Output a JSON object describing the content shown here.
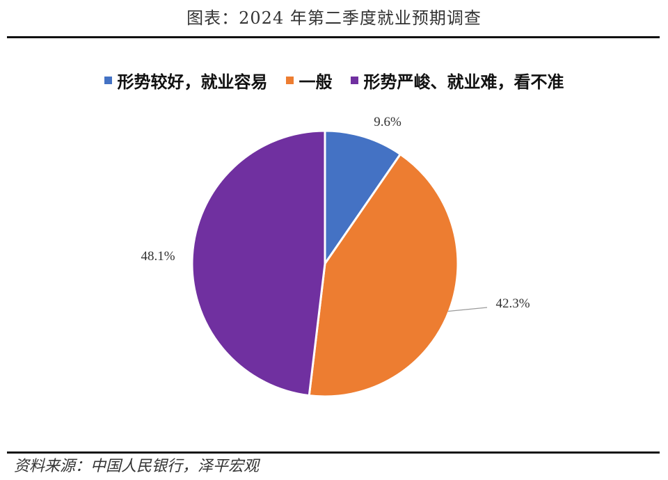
{
  "title": "图表：2024 年第二季度就业预期调查",
  "source": "资料来源：中国人民银行，泽平宏观",
  "chart_data": {
    "type": "pie",
    "categories": [
      "形势较好，就业容易",
      "一般",
      "形势严峻、就业难，看不准"
    ],
    "values": [
      9.6,
      42.3,
      48.1
    ],
    "labels": [
      "9.6%",
      "42.3%",
      "48.1%"
    ],
    "colors": [
      "#4472C4",
      "#ED7D31",
      "#7030A0"
    ],
    "legend_position": "top",
    "start_angle": "12 o'clock, clockwise"
  }
}
